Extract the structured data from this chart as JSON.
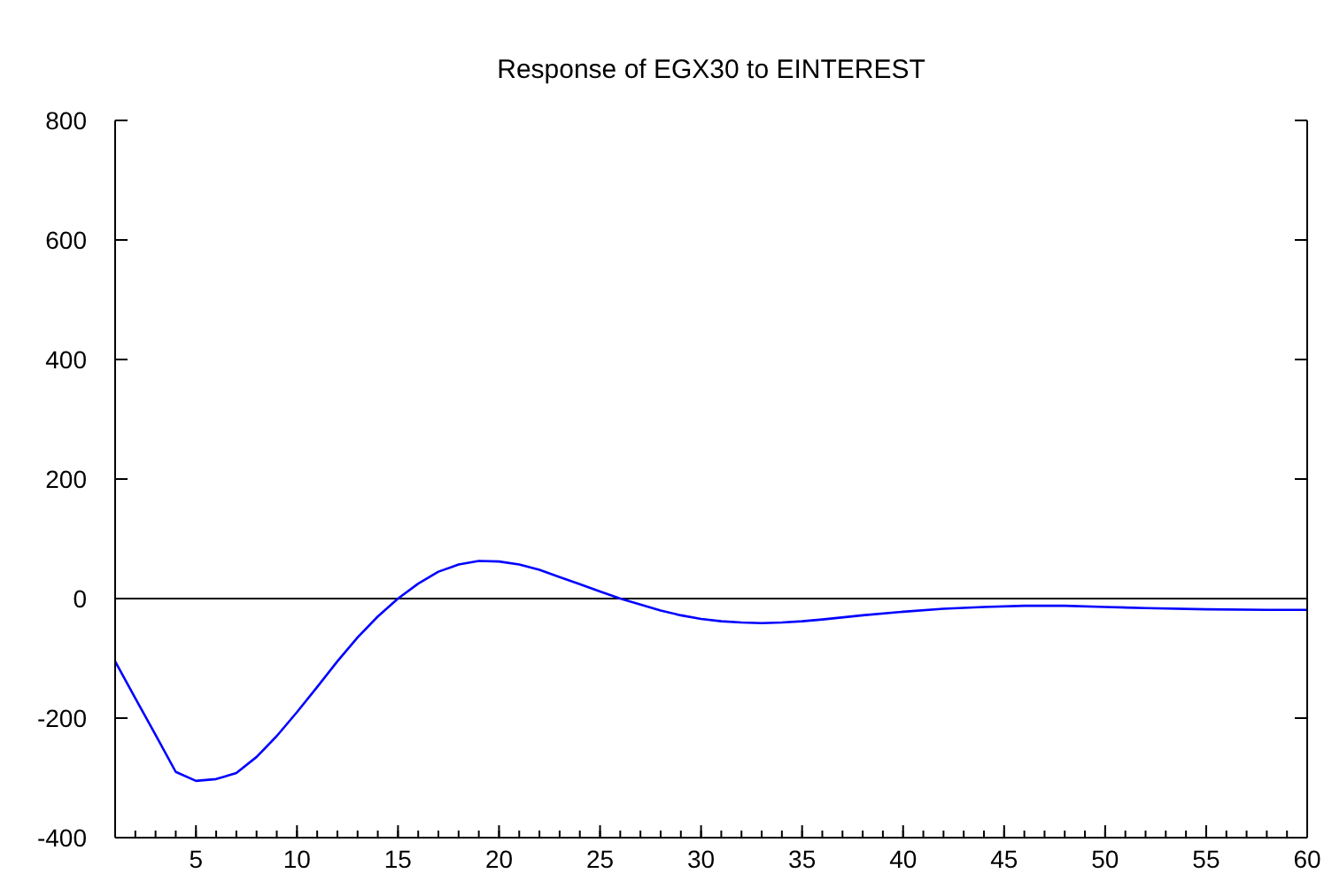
{
  "chart_data": {
    "type": "line",
    "title": "Response of EGX30 to EINTEREST",
    "x": [
      1,
      2,
      3,
      4,
      5,
      6,
      7,
      8,
      9,
      10,
      11,
      12,
      13,
      14,
      15,
      16,
      17,
      18,
      19,
      20,
      21,
      22,
      23,
      24,
      25,
      26,
      27,
      28,
      29,
      30,
      31,
      32,
      33,
      34,
      35,
      36,
      38,
      40,
      42,
      44,
      46,
      48,
      50,
      52,
      55,
      58,
      60
    ],
    "series": [
      {
        "color": "#0000ff",
        "values": [
          -105,
          -167,
          -228,
          -290,
          -305,
          -302,
          -292,
          -265,
          -230,
          -190,
          -148,
          -105,
          -65,
          -30,
          0,
          25,
          45,
          57,
          63,
          62,
          57,
          48,
          36,
          24,
          12,
          0,
          -10,
          -20,
          -28,
          -34,
          -38,
          -40,
          -41,
          -40,
          -38,
          -35,
          -28,
          -22,
          -17,
          -14,
          -12,
          -12,
          -14,
          -16,
          -18,
          -19,
          -19
        ]
      }
    ],
    "xlim": [
      1,
      60
    ],
    "xticks": [
      5,
      10,
      15,
      20,
      25,
      30,
      35,
      40,
      45,
      50,
      55,
      60
    ],
    "ylim": [
      -400,
      800
    ],
    "yticks": [
      -400,
      -200,
      0,
      200,
      400,
      600,
      800
    ],
    "ref_lines": [
      {
        "axis": "y",
        "value": 0,
        "color": "#000000"
      }
    ],
    "grid": false
  }
}
